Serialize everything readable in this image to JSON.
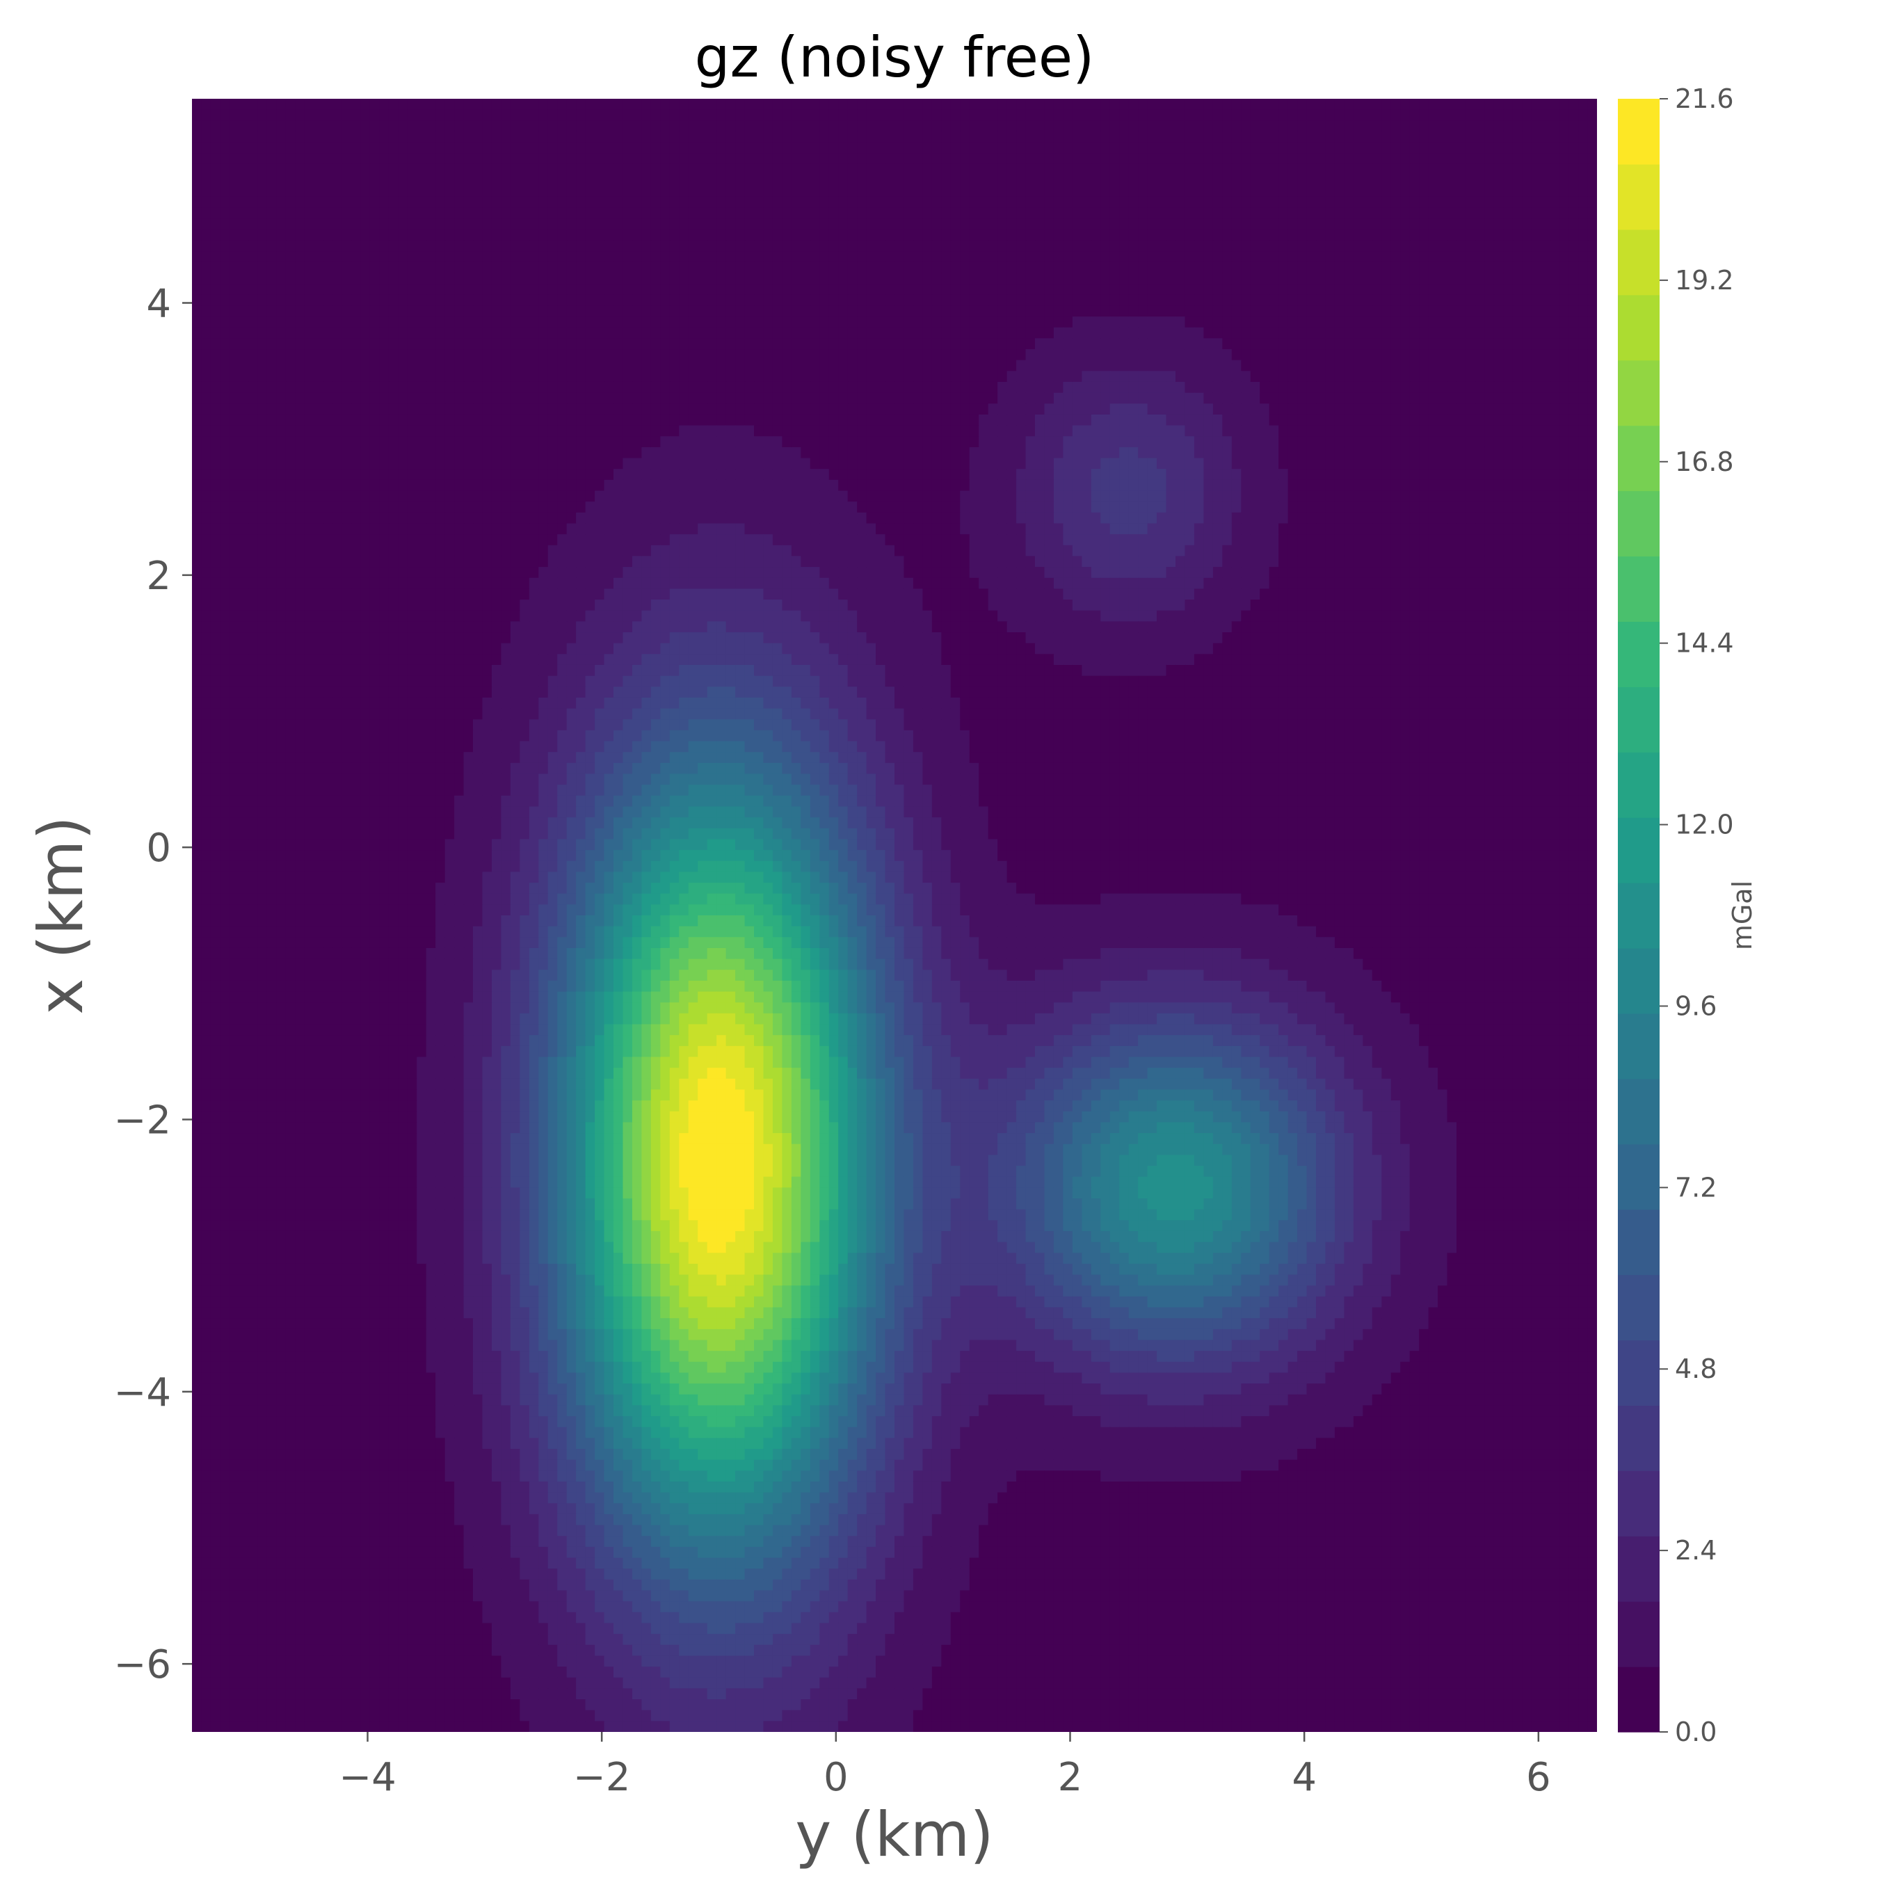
{
  "chart_data": {
    "type": "heatmap",
    "subtype": "filled-contour",
    "title": "gz (noisy free)",
    "xlabel": "y (km)",
    "ylabel": "x (km)",
    "xlim": [
      -5.5,
      6.5
    ],
    "ylim": [
      -6.5,
      5.5
    ],
    "xticks": [
      -4,
      -2,
      0,
      2,
      4,
      6
    ],
    "xtick_labels": [
      "−4",
      "−2",
      "0",
      "2",
      "4",
      "6"
    ],
    "yticks": [
      4,
      2,
      0,
      -2,
      -4,
      -6
    ],
    "ytick_labels": [
      "4",
      "2",
      "0",
      "−2",
      "−4",
      "−6"
    ],
    "colormap": "viridis",
    "levels": {
      "min": 0.0,
      "max": 21.6,
      "step": 0.864
    },
    "colorbar": {
      "label": "mGal",
      "ticks": [
        21.6,
        19.2,
        16.8,
        14.4,
        12.0,
        9.6,
        7.2,
        4.8,
        2.4,
        0.0
      ],
      "tick_labels": [
        "21.6",
        "19.2",
        "16.8",
        "14.4",
        "12.0",
        "9.6",
        "7.2",
        "4.8",
        "2.4",
        "0.0"
      ]
    },
    "anomalies": [
      {
        "y": -1.0,
        "x": -2.3,
        "peak": 21.6,
        "sigma_y": 0.95,
        "sigma_x": 2.0
      },
      {
        "y": 2.9,
        "x": -2.5,
        "peak": 10.5,
        "sigma_y": 1.0,
        "sigma_x": 0.9
      },
      {
        "y": 2.5,
        "x": 2.6,
        "peak": 3.5,
        "sigma_y": 0.7,
        "sigma_x": 0.7
      }
    ],
    "background": 0.3,
    "grid": false
  },
  "colors": {
    "viridis_stops": [
      "#440154",
      "#482878",
      "#3e4989",
      "#31688e",
      "#26828e",
      "#1f9e89",
      "#35b779",
      "#6ece58",
      "#b5de2b",
      "#fde725"
    ],
    "axis_text": "#555555"
  }
}
